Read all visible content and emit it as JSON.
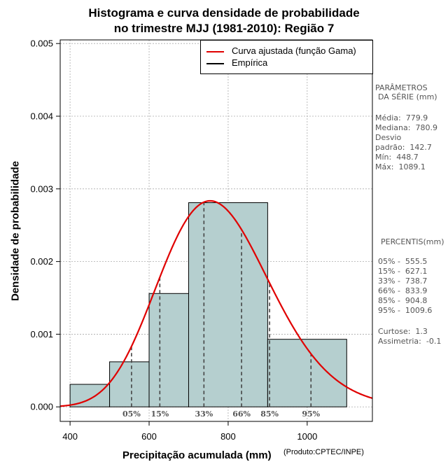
{
  "title_line1": "Histograma e curva densidade de probabilidade",
  "title_line2": "no trimestre MJJ (1981-2010): Região 7",
  "product_note": "(Produto:CPTEC/INPE)",
  "stats": {
    "heading1": "PARÂMETROS",
    "heading2": "DA SÉRIE (mm)",
    "mean": "Média:  779.9",
    "median": "Mediana:  780.9",
    "sd_label": "Desvio",
    "sd": "padrão:  142.7",
    "min": "Mín:  448.7",
    "max": "Máx:  1089.1"
  },
  "percentiles_box": {
    "heading": "PERCENTIS(mm)",
    "p05": "05% -  555.5",
    "p15": "15% -  627.1",
    "p33": "33% -  738.7",
    "p66": "66% -  833.9",
    "p85": "85% -  904.8",
    "p95": "95% -  1009.6",
    "kurtosis": "Curtose:  1.3",
    "skewness": "Assimetria:  -0.1"
  },
  "chart_data": {
    "type": "bar",
    "title": "Histograma e curva densidade de probabilidade no trimestre MJJ (1981-2010): Região 7",
    "xlabel": "Precipitação acumulada (mm)",
    "ylabel": "Densidade de probabilidade",
    "xlim": [
      375,
      1165
    ],
    "ylim": [
      -0.0002,
      0.00505
    ],
    "x_ticks": [
      400,
      600,
      800,
      1000
    ],
    "y_ticks": [
      0.0,
      0.001,
      0.002,
      0.003,
      0.004,
      0.005
    ],
    "y_tick_labels": [
      "0.000",
      "0.001",
      "0.002",
      "0.003",
      "0.004",
      "0.005"
    ],
    "grid": true,
    "bins": [
      {
        "start": 400,
        "end": 500,
        "density": 0.00031
      },
      {
        "start": 500,
        "end": 600,
        "density": 0.00062
      },
      {
        "start": 600,
        "end": 700,
        "density": 0.00156
      },
      {
        "start": 700,
        "end": 900,
        "density": 0.00281
      },
      {
        "start": 900,
        "end": 1100,
        "density": 0.00093
      }
    ],
    "bar_color": "#b5cfcf",
    "fitted_curve": {
      "name": "Curva ajustada (função Gama)",
      "distribution": "gamma",
      "shape": 29.9,
      "scale": 26.1,
      "color": "#e00000"
    },
    "empirical": {
      "name": "Empírica",
      "color": "#000000"
    },
    "percentiles": [
      {
        "label": "05%",
        "value": 555.5
      },
      {
        "label": "15%",
        "value": 627.1
      },
      {
        "label": "33%",
        "value": 738.7
      },
      {
        "label": "66%",
        "value": 833.9
      },
      {
        "label": "85%",
        "value": 904.8
      },
      {
        "label": "95%",
        "value": 1009.6
      }
    ],
    "legend_position": "top-right"
  }
}
